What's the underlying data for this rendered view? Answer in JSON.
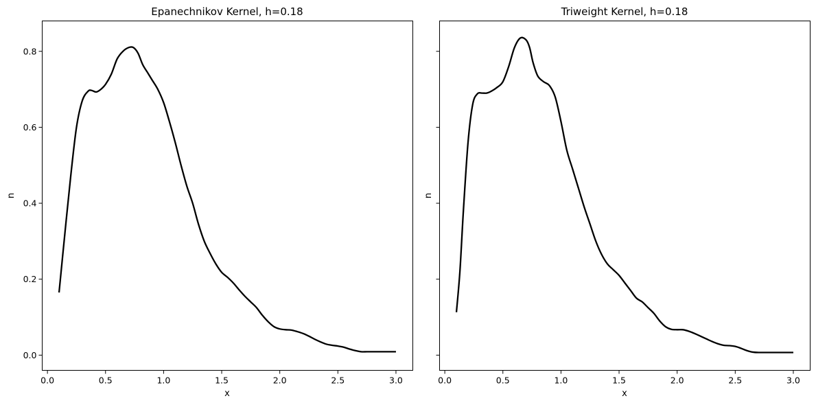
{
  "chart_data": [
    {
      "type": "line",
      "title": "Epanechnikov Kernel, h=0.18",
      "xlabel": "x",
      "ylabel": "n",
      "xlim": [
        -0.045,
        3.145
      ],
      "ylim": [
        -0.04,
        0.88
      ],
      "xticks": [
        0.0,
        0.5,
        1.0,
        1.5,
        2.0,
        2.5,
        3.0
      ],
      "xtick_labels": [
        "0.0",
        "0.5",
        "1.0",
        "1.5",
        "2.0",
        "2.5",
        "3.0"
      ],
      "yticks": [
        0.0,
        0.2,
        0.4,
        0.6,
        0.8
      ],
      "ytick_labels": [
        "0.0",
        "0.2",
        "0.4",
        "0.6",
        "0.8"
      ],
      "show_ytick_labels": true,
      "grid": false,
      "color": "#000000",
      "series": [
        {
          "x": [
            0.1,
            0.15,
            0.2,
            0.25,
            0.3,
            0.35,
            0.38,
            0.42,
            0.46,
            0.5,
            0.55,
            0.6,
            0.65,
            0.7,
            0.74,
            0.78,
            0.82,
            0.86,
            0.9,
            0.95,
            1.0,
            1.05,
            1.1,
            1.15,
            1.2,
            1.25,
            1.3,
            1.35,
            1.4,
            1.45,
            1.5,
            1.55,
            1.6,
            1.65,
            1.7,
            1.75,
            1.8,
            1.85,
            1.9,
            1.95,
            2.0,
            2.05,
            2.1,
            2.15,
            2.2,
            2.25,
            2.3,
            2.35,
            2.4,
            2.45,
            2.5,
            2.55,
            2.6,
            2.65,
            2.7,
            2.75,
            2.8,
            2.85,
            2.9,
            2.95,
            3.0
          ],
          "y": [
            0.165,
            0.32,
            0.47,
            0.6,
            0.67,
            0.695,
            0.697,
            0.693,
            0.7,
            0.713,
            0.74,
            0.78,
            0.8,
            0.81,
            0.81,
            0.795,
            0.765,
            0.745,
            0.725,
            0.7,
            0.665,
            0.615,
            0.56,
            0.5,
            0.445,
            0.4,
            0.345,
            0.3,
            0.268,
            0.24,
            0.218,
            0.205,
            0.19,
            0.172,
            0.155,
            0.14,
            0.125,
            0.105,
            0.088,
            0.075,
            0.069,
            0.067,
            0.066,
            0.062,
            0.057,
            0.05,
            0.042,
            0.035,
            0.029,
            0.026,
            0.024,
            0.021,
            0.016,
            0.012,
            0.009,
            0.009,
            0.009,
            0.009,
            0.009,
            0.009,
            0.009
          ]
        }
      ]
    },
    {
      "type": "line",
      "title": "Triweight Kernel, h=0.18",
      "xlabel": "x",
      "ylabel": "n",
      "xlim": [
        -0.045,
        3.145
      ],
      "ylim": [
        -0.04,
        0.88
      ],
      "xticks": [
        0.0,
        0.5,
        1.0,
        1.5,
        2.0,
        2.5,
        3.0
      ],
      "xtick_labels": [
        "0.0",
        "0.5",
        "1.0",
        "1.5",
        "2.0",
        "2.5",
        "3.0"
      ],
      "yticks": [
        0.0,
        0.2,
        0.4,
        0.6,
        0.8
      ],
      "ytick_labels": [],
      "show_ytick_labels": false,
      "grid": false,
      "color": "#000000",
      "series": [
        {
          "x": [
            0.1,
            0.13,
            0.16,
            0.2,
            0.24,
            0.28,
            0.32,
            0.36,
            0.4,
            0.45,
            0.5,
            0.55,
            0.6,
            0.65,
            0.7,
            0.73,
            0.76,
            0.8,
            0.85,
            0.9,
            0.95,
            1.0,
            1.05,
            1.1,
            1.15,
            1.2,
            1.25,
            1.3,
            1.35,
            1.4,
            1.45,
            1.5,
            1.55,
            1.6,
            1.65,
            1.7,
            1.75,
            1.8,
            1.85,
            1.9,
            1.95,
            2.0,
            2.05,
            2.1,
            2.15,
            2.2,
            2.25,
            2.3,
            2.35,
            2.4,
            2.45,
            2.5,
            2.55,
            2.6,
            2.65,
            2.7,
            2.75,
            2.8,
            2.85,
            2.9,
            2.95,
            3.0
          ],
          "y": [
            0.113,
            0.22,
            0.38,
            0.56,
            0.66,
            0.688,
            0.69,
            0.69,
            0.695,
            0.705,
            0.72,
            0.76,
            0.81,
            0.835,
            0.83,
            0.81,
            0.77,
            0.735,
            0.72,
            0.71,
            0.68,
            0.615,
            0.54,
            0.49,
            0.44,
            0.39,
            0.345,
            0.3,
            0.265,
            0.24,
            0.225,
            0.21,
            0.19,
            0.17,
            0.15,
            0.14,
            0.125,
            0.11,
            0.09,
            0.075,
            0.068,
            0.067,
            0.067,
            0.063,
            0.057,
            0.05,
            0.043,
            0.036,
            0.03,
            0.026,
            0.025,
            0.023,
            0.018,
            0.012,
            0.008,
            0.007,
            0.007,
            0.007,
            0.007,
            0.007,
            0.007,
            0.007
          ]
        }
      ]
    }
  ]
}
